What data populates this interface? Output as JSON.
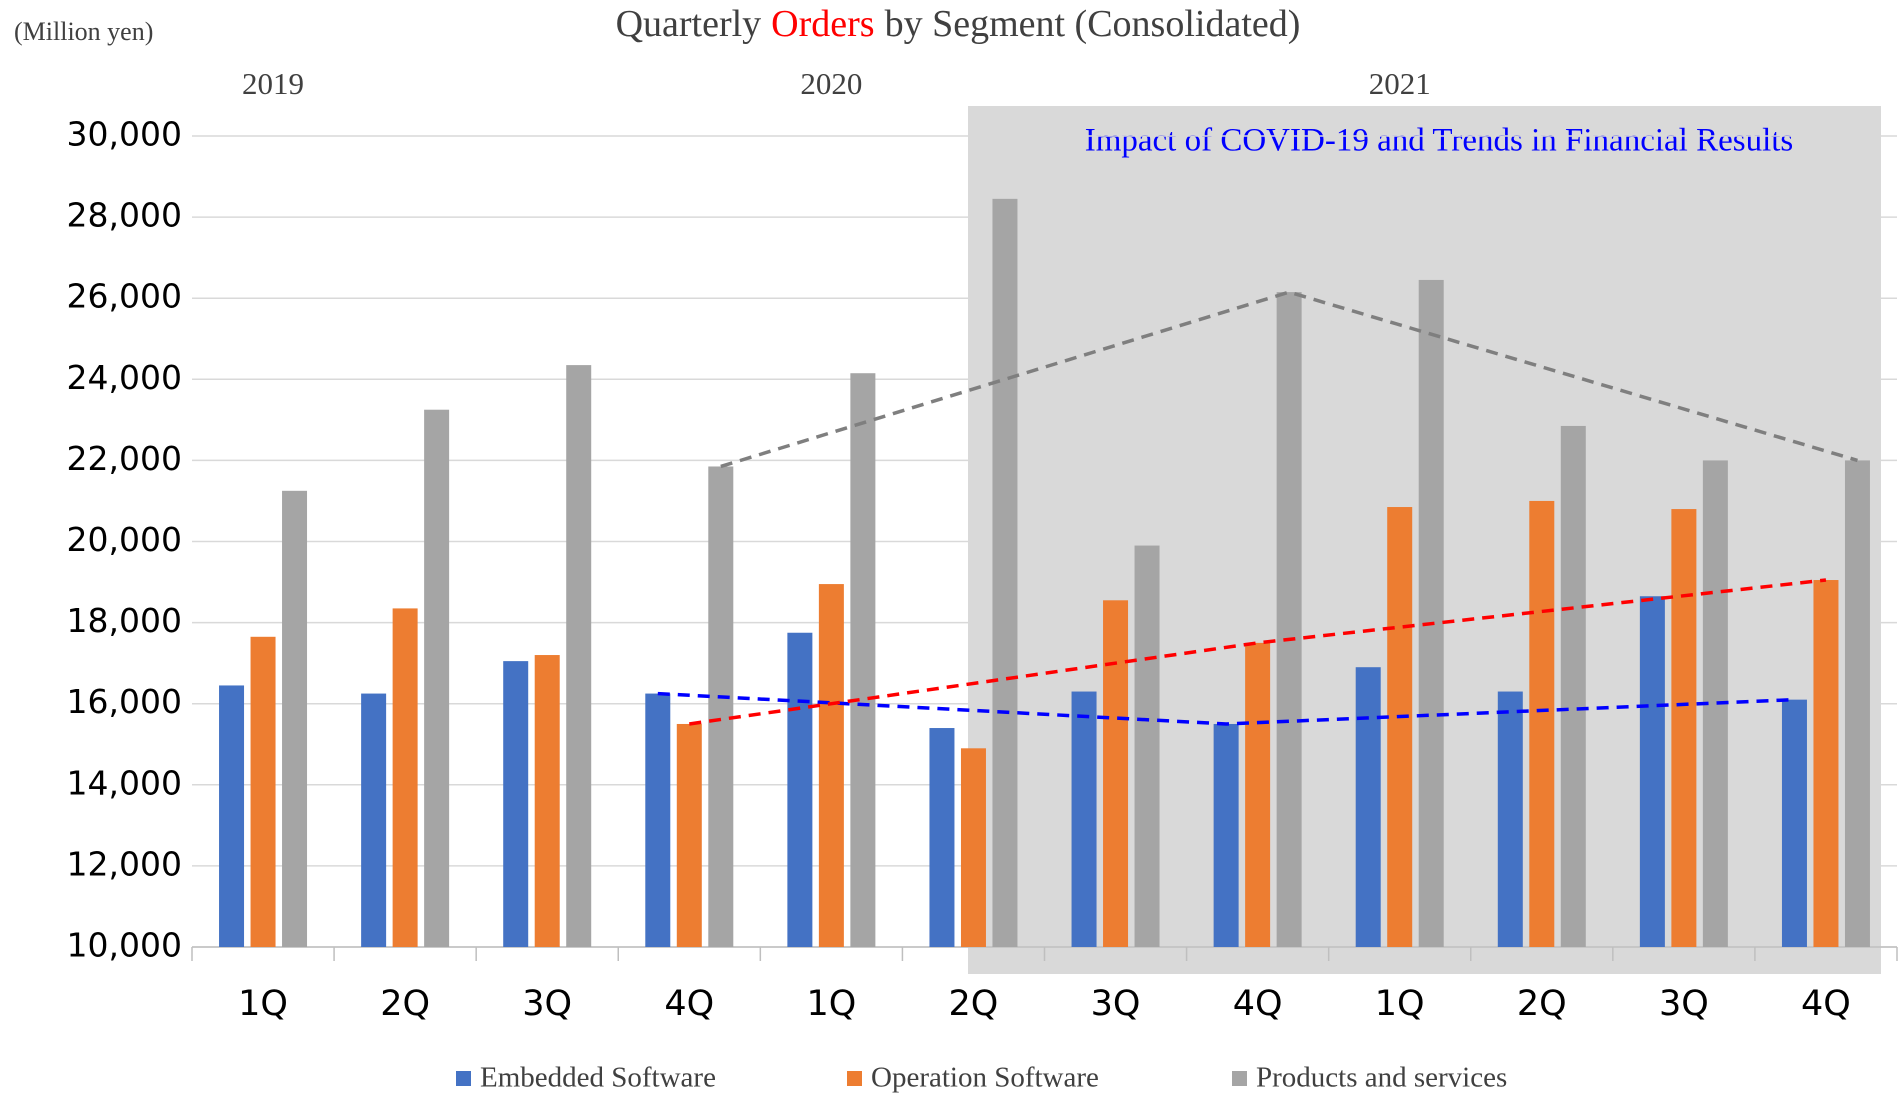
{
  "chart_data": {
    "type": "bar",
    "title": {
      "before": "Quarterly",
      "highlight": "Orders",
      "after": "by Segment (Consolidated)"
    },
    "title_color": "#404040",
    "highlight_color": "#ff0000",
    "unit_label": "(Million yen)",
    "years": [
      "2019",
      "2020",
      "2021"
    ],
    "annotation": "Impact of COVID-19 and Trends in Financial Results",
    "annotation_color": "#0000ff",
    "categories": [
      "1Q",
      "2Q",
      "3Q",
      "4Q",
      "1Q",
      "2Q",
      "3Q",
      "4Q",
      "1Q",
      "2Q",
      "3Q",
      "4Q"
    ],
    "series": [
      {
        "name": "Embedded Software",
        "color": "#4472c4",
        "trend_color": "#0000ff",
        "values": [
          16450,
          16250,
          17050,
          16250,
          17750,
          15400,
          16300,
          15500,
          16900,
          16300,
          18650,
          16100
        ]
      },
      {
        "name": "Operation Software",
        "color": "#ed7d31",
        "trend_color": "#ff0000",
        "values": [
          17650,
          18350,
          17200,
          15500,
          18950,
          14900,
          18550,
          17500,
          20850,
          21000,
          20800,
          19050
        ]
      },
      {
        "name": "Products and services",
        "color": "#a5a5a5",
        "trend_color": "#7f7f7f",
        "values": [
          21250,
          23250,
          24350,
          21850,
          24150,
          28450,
          19900,
          26150,
          26450,
          22850,
          22000,
          22000
        ]
      }
    ],
    "trend_points": [
      3,
      7,
      11
    ],
    "ylim": [
      10000,
      30000
    ],
    "yticks": [
      {
        "value": 10000,
        "label": "10,000"
      },
      {
        "value": 12000,
        "label": "12,000"
      },
      {
        "value": 14000,
        "label": "14,000"
      },
      {
        "value": 16000,
        "label": "16,000"
      },
      {
        "value": 18000,
        "label": "18,000"
      },
      {
        "value": 20000,
        "label": "20,000"
      },
      {
        "value": 22000,
        "label": "22,000"
      },
      {
        "value": 24000,
        "label": "24,000"
      },
      {
        "value": 26000,
        "label": "26,000"
      },
      {
        "value": 28000,
        "label": "28,000"
      },
      {
        "value": 30000,
        "label": "30,000"
      }
    ],
    "grid": true
  }
}
